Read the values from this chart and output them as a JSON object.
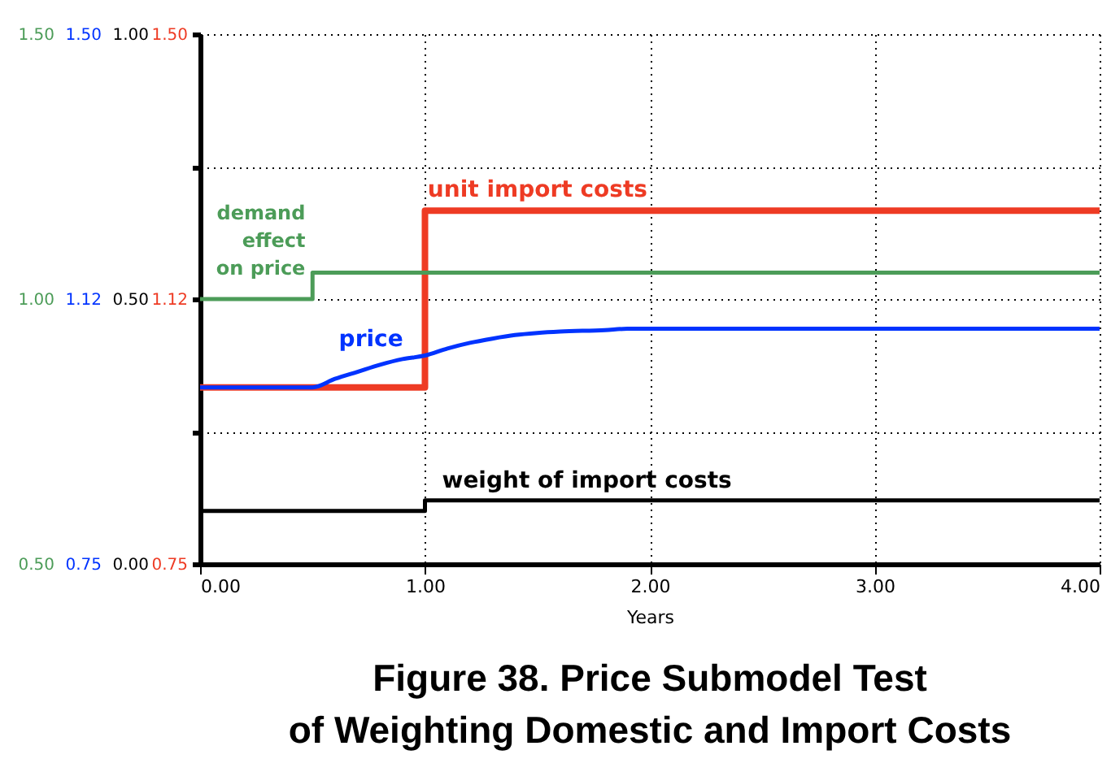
{
  "chart_data": {
    "type": "line",
    "title": "Figure 38.  Price Submodel Test\nof Weighting Domestic and Import Costs",
    "xlabel": "Years",
    "xlim": [
      0,
      4
    ],
    "xticks": [
      {
        "value": 0,
        "label": "0.00"
      },
      {
        "value": 1,
        "label": "1.00"
      },
      {
        "value": 2,
        "label": "2.00"
      },
      {
        "value": 3,
        "label": "3.00"
      },
      {
        "value": 4,
        "label": "4.00"
      }
    ],
    "ylim": [
      0.75,
      1.5
    ],
    "yticks": [
      {
        "value": 0.75,
        "label": "0.75"
      },
      {
        "value": 0.9375,
        "label": null
      },
      {
        "value": 1.125,
        "label": "1.12"
      },
      {
        "value": 1.3125,
        "label": null
      },
      {
        "value": 1.5,
        "label": "1.50"
      }
    ],
    "y2lim": [
      0,
      1
    ],
    "y2ticks": [
      {
        "value": 0,
        "label": "0.00"
      },
      {
        "value": 0.5,
        "label": "0.50"
      },
      {
        "value": 1,
        "label": "1.00"
      }
    ],
    "y3lim": [
      0.5,
      1.5
    ],
    "y3ticks": [
      {
        "value": 0.5,
        "label": "0.50"
      },
      {
        "value": 1,
        "label": "1.00"
      },
      {
        "value": 1.5,
        "label": "1.50"
      }
    ],
    "grid": true,
    "series": [
      {
        "name": "unit import costs",
        "type": "step",
        "axis": "y",
        "color": "#ee3b24",
        "x": [
          0,
          1,
          4
        ],
        "values": [
          1.0,
          1.25,
          1.25
        ]
      },
      {
        "name": "weight of import costs",
        "type": "step",
        "axis": "y2",
        "color": "#000000",
        "x": [
          0,
          1,
          4
        ],
        "values": [
          0.1,
          0.12,
          0.12
        ]
      },
      {
        "name": "price",
        "color": "#0033ff",
        "x": [
          0,
          0.5,
          0.6,
          0.7,
          0.8,
          0.9,
          1.0,
          1.1,
          1.2,
          1.3,
          1.4,
          1.5,
          1.6,
          1.8,
          1.9,
          4.0
        ],
        "values": [
          1.0,
          1.0,
          1.012,
          1.022,
          1.032,
          1.04,
          1.045,
          1.055,
          1.063,
          1.069,
          1.074,
          1.077,
          1.079,
          1.081,
          1.083,
          1.083
        ]
      },
      {
        "name": "demand effect on price",
        "type": "step",
        "axis": "y3",
        "color": "#4c9c58",
        "x": [
          0,
          0.5,
          4
        ],
        "values": [
          1.0,
          1.05,
          1.05
        ]
      }
    ]
  }
}
